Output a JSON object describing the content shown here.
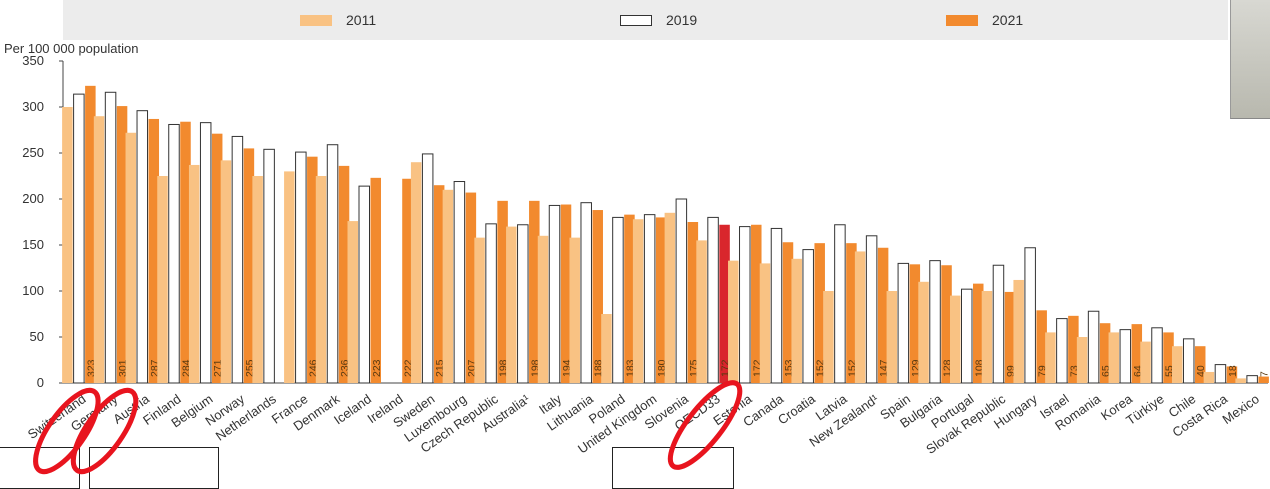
{
  "chart_data": {
    "type": "bar",
    "ylabel": "Per 100 000 population",
    "ylim": [
      0,
      350
    ],
    "yticks": [
      0,
      50,
      100,
      150,
      200,
      250,
      300,
      350
    ],
    "legend_position": "top",
    "grid": false,
    "categories": [
      "Switzerland",
      "Germany",
      "Austria",
      "Finland",
      "Belgium",
      "Norway",
      "Netherlands",
      "France",
      "Denmark",
      "Iceland",
      "Ireland",
      "Sweden",
      "Luxembourg",
      "Czech Republic",
      "Australia¹",
      "Italy",
      "Lithuania",
      "Poland",
      "United Kingdom",
      "Slovenia",
      "OECD33",
      "Estonia",
      "Canada",
      "Croatia",
      "Latvia",
      "New Zealand¹",
      "Spain",
      "Bulgaria",
      "Portugal",
      "Slovak Republic",
      "Hungary",
      "Israel",
      "Romania",
      "Korea",
      "Türkiye",
      "Chile",
      "Costa Rica",
      "Mexico"
    ],
    "series": [
      {
        "name": "2011",
        "color": "#f9c283",
        "values": [
          300,
          290,
          272,
          225,
          237,
          242,
          225,
          230,
          225,
          176,
          null,
          240,
          210,
          158,
          170,
          160,
          158,
          75,
          178,
          185,
          155,
          133,
          130,
          135,
          100,
          143,
          100,
          110,
          95,
          100,
          112,
          55,
          50,
          55,
          45,
          40,
          12,
          5
        ]
      },
      {
        "name": "2019",
        "color": "#ffffff",
        "values": [
          314,
          316,
          296,
          281,
          283,
          268,
          254,
          251,
          259,
          214,
          null,
          249,
          219,
          173,
          172,
          193,
          196,
          180,
          183,
          200,
          180,
          170,
          168,
          145,
          172,
          160,
          130,
          133,
          102,
          128,
          147,
          70,
          78,
          58,
          60,
          48,
          20,
          8
        ]
      },
      {
        "name": "2021",
        "color": "#f28a2e",
        "values": [
          323,
          301,
          287,
          284,
          271,
          255,
          null,
          246,
          236,
          223,
          222,
          215,
          207,
          198,
          198,
          194,
          188,
          183,
          180,
          175,
          172,
          172,
          153,
          152,
          152,
          147,
          129,
          128,
          108,
          99,
          79,
          73,
          65,
          64,
          55,
          40,
          18,
          7
        ]
      }
    ],
    "value_labels": [
      "323",
      "301",
      "287",
      "284",
      "271",
      "255",
      "",
      "246",
      "236",
      "223",
      "222",
      "215",
      "207",
      "198",
      "198",
      "194",
      "188",
      "183",
      "180",
      "175",
      "172",
      "172",
      "153",
      "152",
      "152",
      "147",
      "129",
      "128",
      "108",
      "99",
      "79",
      "73",
      "65",
      "64",
      "55",
      "40",
      "18",
      "7"
    ],
    "highlight_category": "OECD33",
    "highlight_color": "#d9262c",
    "annotation_circles": [
      "Switzerland",
      "Germany",
      "OECD33"
    ],
    "annotation_color": "#e8141e"
  }
}
